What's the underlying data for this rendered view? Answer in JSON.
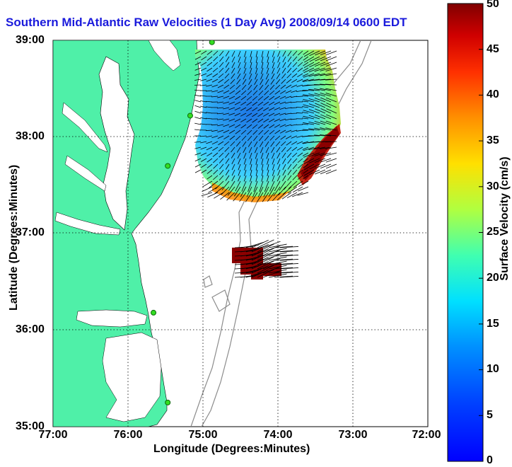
{
  "title": "Southern Mid-Atlantic Raw Velocities (1 Day Avg) 2008/09/14 0600 EDT",
  "x_axis": {
    "label": "Longitude (Degrees:Minutes)",
    "ticks": [
      "77:00",
      "76:00",
      "75:00",
      "74:00",
      "73:00",
      "72:00"
    ]
  },
  "y_axis": {
    "label": "Latitude (Degrees:Minutes)",
    "ticks": [
      "39:00",
      "38:00",
      "37:00",
      "36:00",
      "35:00"
    ]
  },
  "colorbar": {
    "label": "Surface Velocity (cm/s)",
    "ticks": [
      "50",
      "45",
      "40",
      "35",
      "30",
      "25",
      "20",
      "15",
      "10",
      "5",
      "0"
    ],
    "range": [
      0,
      50
    ],
    "colormap": "jet"
  },
  "colors": {
    "land": "#4ff0a8",
    "title": "#1a1adc",
    "bathymetry": "#8c8c8c",
    "stations": "#33dd22"
  },
  "map_extent": {
    "lon": [
      -77,
      -72
    ],
    "lat": [
      35,
      39
    ]
  },
  "grid": true,
  "stations": [
    {
      "lon": -74.88,
      "lat": 38.98
    },
    {
      "lon": -75.17,
      "lat": 38.22
    },
    {
      "lon": -75.47,
      "lat": 37.7
    },
    {
      "lon": -75.66,
      "lat": 36.18
    },
    {
      "lon": -75.47,
      "lat": 35.25
    }
  ],
  "velocity_regions": [
    {
      "name": "main-field",
      "speed_cm_s": "0-50",
      "center": {
        "lon": -74.3,
        "lat": 38.2
      }
    },
    {
      "name": "offshore-patch",
      "speed_cm_s": "45-50",
      "center": {
        "lon": -74.15,
        "lat": 36.75
      }
    }
  ]
}
